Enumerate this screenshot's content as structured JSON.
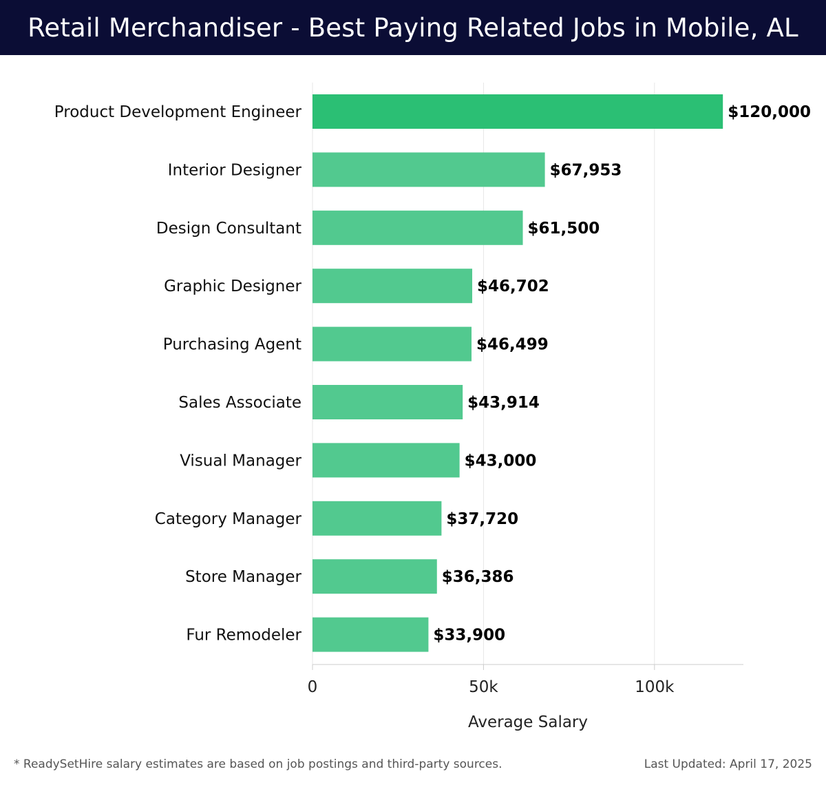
{
  "header": {
    "title": "Retail Merchandiser - Best Paying Related Jobs in Mobile, AL"
  },
  "footer": {
    "note": "* ReadySetHire salary estimates are based on job postings and third-party sources.",
    "updated": "Last Updated: April 17, 2025"
  },
  "colors": {
    "header_bg": "#0b0d35",
    "bar_top": "#2bbf74",
    "bar": "#52c98f",
    "grid": "#e6e6e6",
    "axis": "#cccccc"
  },
  "chart_data": {
    "type": "bar",
    "orientation": "horizontal",
    "xlabel": "Average Salary",
    "xlim": [
      0,
      126000
    ],
    "ticks": [
      {
        "value": 0,
        "label": "0"
      },
      {
        "value": 50000,
        "label": "50k"
      },
      {
        "value": 100000,
        "label": "100k"
      }
    ],
    "grid": true,
    "categories": [
      "Product Development Engineer",
      "Interior Designer",
      "Design Consultant",
      "Graphic Designer",
      "Purchasing Agent",
      "Sales Associate",
      "Visual Manager",
      "Category Manager",
      "Store Manager",
      "Fur Remodeler"
    ],
    "values": [
      120000,
      67953,
      61500,
      46702,
      46499,
      43914,
      43000,
      37720,
      36386,
      33900
    ],
    "value_labels": [
      "$120,000",
      "$67,953",
      "$61,500",
      "$46,702",
      "$46,499",
      "$43,914",
      "$43,000",
      "$37,720",
      "$36,386",
      "$33,900"
    ]
  }
}
